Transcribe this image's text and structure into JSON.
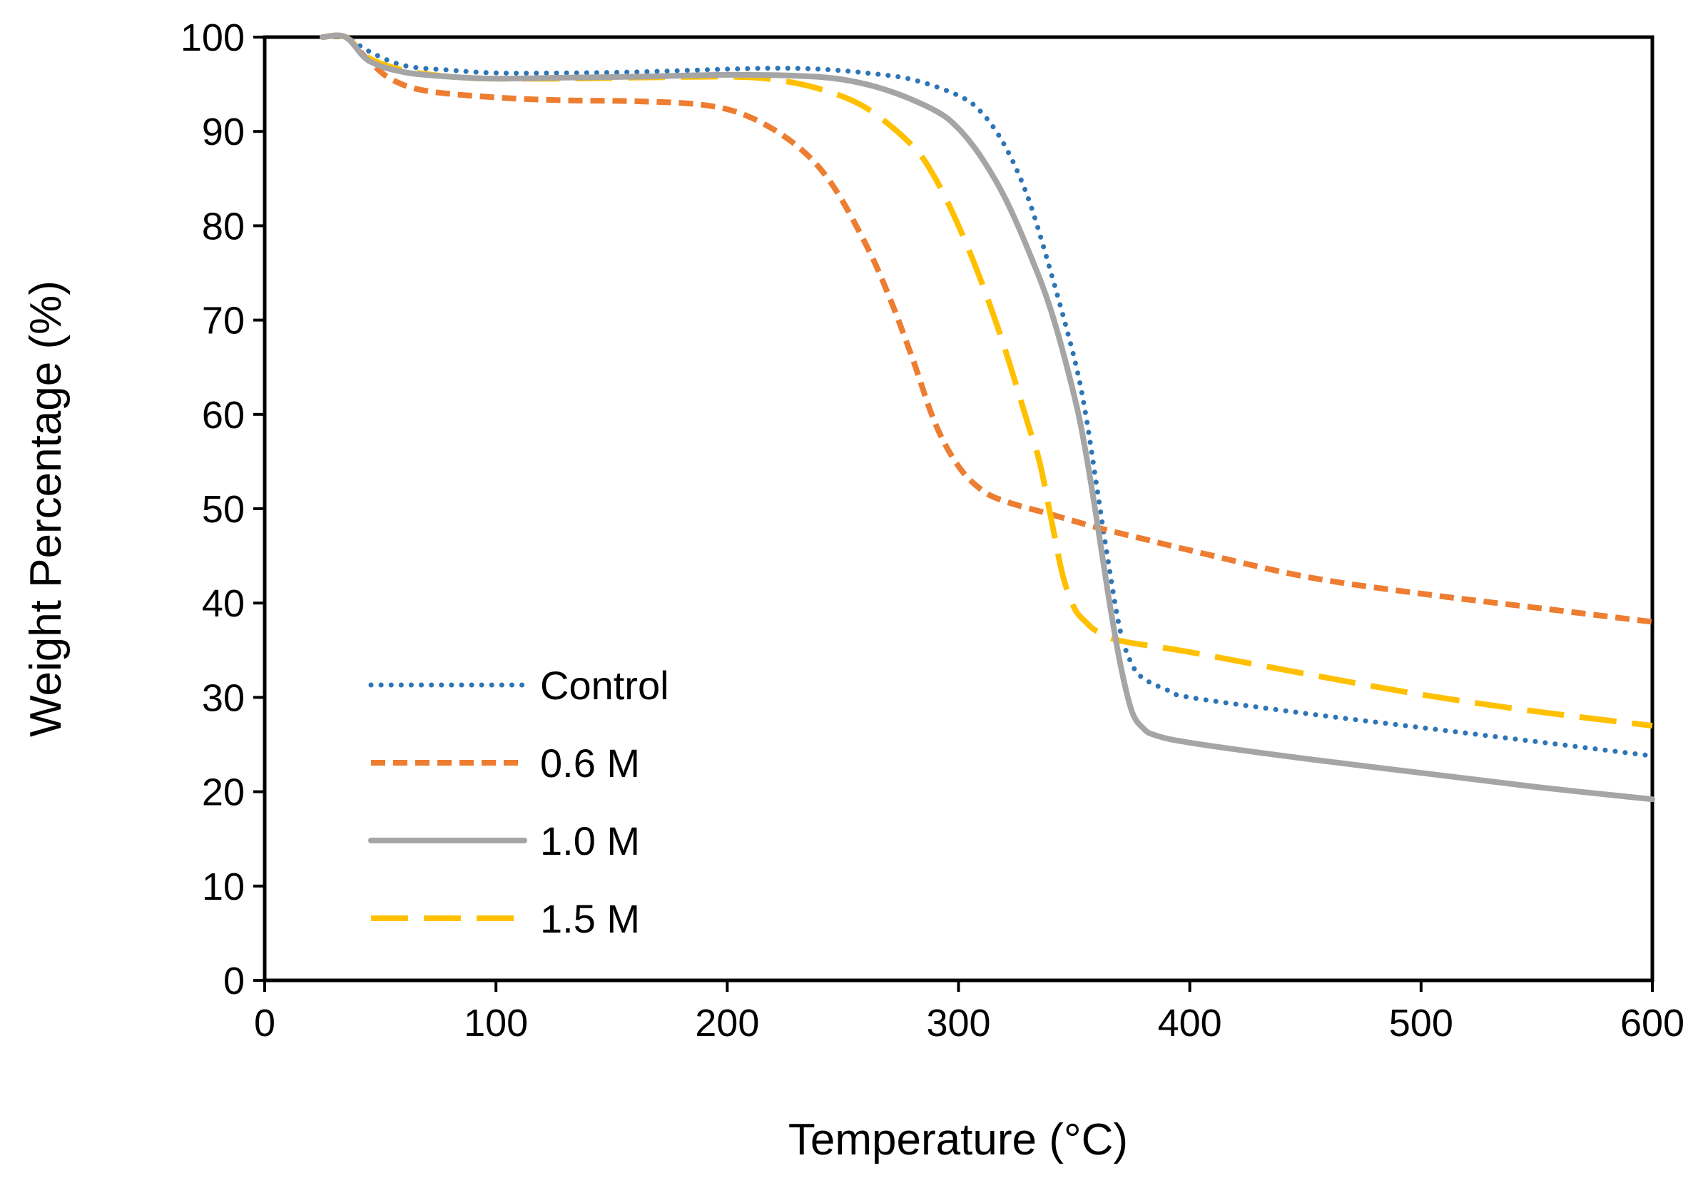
{
  "chart_data": {
    "type": "line",
    "title": "",
    "xlabel": "Temperature (°C)",
    "ylabel": "Weight Percentage (%)",
    "xlim": [
      0,
      600
    ],
    "ylim": [
      0,
      100
    ],
    "x_ticks": [
      0,
      100,
      200,
      300,
      400,
      500,
      600
    ],
    "y_ticks": [
      0,
      10,
      20,
      30,
      40,
      50,
      60,
      70,
      80,
      90,
      100
    ],
    "x_tick_labels": [
      "0",
      "100",
      "200",
      "300",
      "400",
      "500",
      "600"
    ],
    "y_tick_labels": [
      "0",
      "10",
      "20",
      "30",
      "40",
      "50",
      "60",
      "70",
      "80",
      "90",
      "100"
    ],
    "grid": false,
    "legend_position": "bottom-left",
    "series": [
      {
        "name": "Control",
        "color": "#2E75B6",
        "style": "dotted",
        "x": [
          25,
          35,
          45,
          60,
          80,
          100,
          130,
          160,
          200,
          220,
          240,
          260,
          280,
          300,
          310,
          320,
          330,
          340,
          350,
          355,
          360,
          365,
          370,
          375,
          380,
          390,
          400,
          450,
          500,
          550,
          600
        ],
        "y": [
          100,
          100,
          98.5,
          97,
          96.5,
          96.2,
          96.2,
          96.3,
          96.6,
          96.7,
          96.6,
          96.2,
          95.5,
          93.8,
          92,
          88.5,
          83,
          75,
          66,
          60,
          52,
          44,
          37,
          33.5,
          32,
          30.8,
          30,
          28.3,
          26.8,
          25.3,
          23.8
        ]
      },
      {
        "name": "0.6 M",
        "color": "#ED7D31",
        "style": "short-dash",
        "x": [
          25,
          35,
          45,
          55,
          70,
          100,
          130,
          160,
          190,
          210,
          230,
          245,
          260,
          270,
          280,
          290,
          300,
          310,
          320,
          340,
          360,
          380,
          400,
          450,
          500,
          550,
          600
        ],
        "y": [
          100,
          100,
          97.5,
          95.5,
          94.3,
          93.6,
          93.3,
          93.2,
          92.8,
          91.5,
          88.5,
          84.5,
          78,
          72.5,
          66,
          59,
          54.5,
          52,
          50.8,
          49.4,
          48,
          46.8,
          45.6,
          42.8,
          41,
          39.5,
          38
        ]
      },
      {
        "name": "1.0 M",
        "color": "#A5A5A5",
        "style": "solid",
        "x": [
          25,
          35,
          45,
          60,
          80,
          100,
          130,
          160,
          200,
          230,
          250,
          270,
          290,
          300,
          310,
          320,
          330,
          340,
          350,
          355,
          360,
          365,
          370,
          375,
          380,
          385,
          400,
          450,
          500,
          550,
          600
        ],
        "y": [
          100,
          100,
          97.5,
          96.3,
          95.8,
          95.6,
          95.7,
          95.8,
          96,
          95.9,
          95.5,
          94.3,
          92.2,
          90.3,
          87.2,
          83,
          77.5,
          71,
          62,
          56,
          48.5,
          40.5,
          33.5,
          28.5,
          26.7,
          26,
          25.2,
          23.5,
          22,
          20.5,
          19.2
        ]
      },
      {
        "name": "1.5 M",
        "color": "#FFC000",
        "style": "long-dash",
        "x": [
          25,
          35,
          45,
          60,
          80,
          100,
          130,
          160,
          200,
          220,
          240,
          260,
          280,
          290,
          300,
          310,
          320,
          330,
          335,
          340,
          345,
          350,
          355,
          360,
          370,
          400,
          450,
          500,
          550,
          600
        ],
        "y": [
          100,
          100,
          97.8,
          96.5,
          95.8,
          95.6,
          95.6,
          95.7,
          95.8,
          95.5,
          94.5,
          92.5,
          88.5,
          85,
          80,
          74,
          67,
          59,
          55,
          49,
          43,
          39.5,
          38,
          37,
          36,
          34.8,
          32.5,
          30.3,
          28.5,
          27
        ]
      }
    ]
  }
}
